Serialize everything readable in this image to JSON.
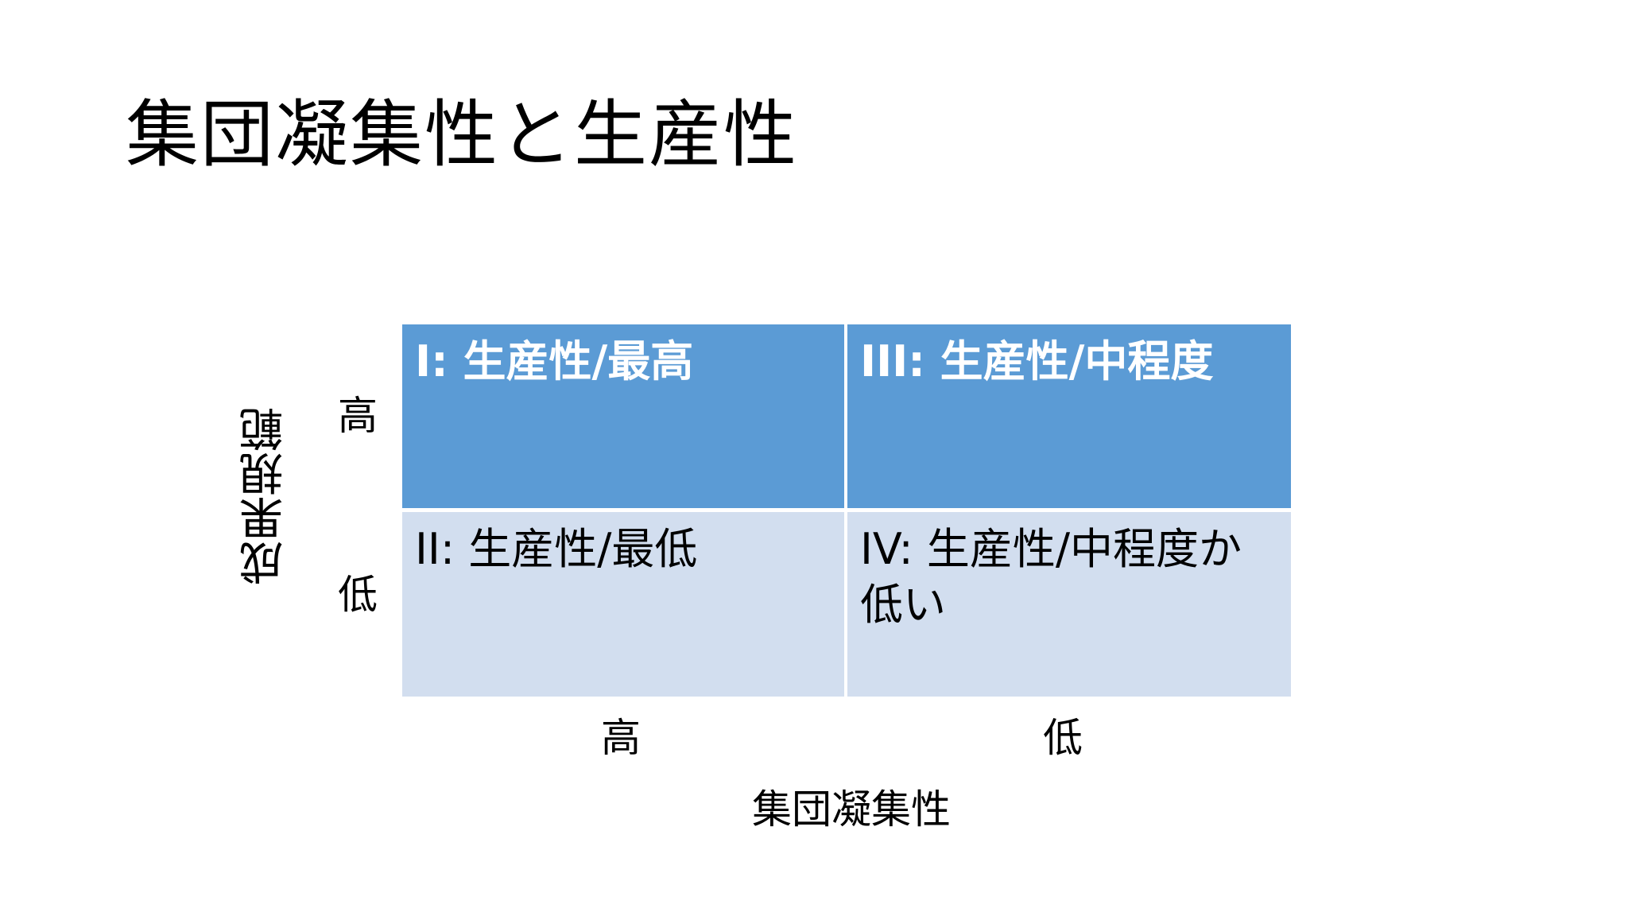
{
  "slide": {
    "title": "集団凝集性と生産性",
    "quadrants": {
      "top_left": "I: 生産性/最高",
      "top_right": "III: 生産性/中程度",
      "bottom_left": "II: 生産性/最低",
      "bottom_right": "IV: 生産性/中程度か低い"
    },
    "y_axis": {
      "title": "成果規範",
      "high": "高",
      "low": "低"
    },
    "x_axis": {
      "title": "集団凝集性",
      "high": "高",
      "low": "低"
    },
    "colors": {
      "top_row_fill": "#5b9bd5",
      "bottom_row_fill": "#d2deef"
    }
  }
}
